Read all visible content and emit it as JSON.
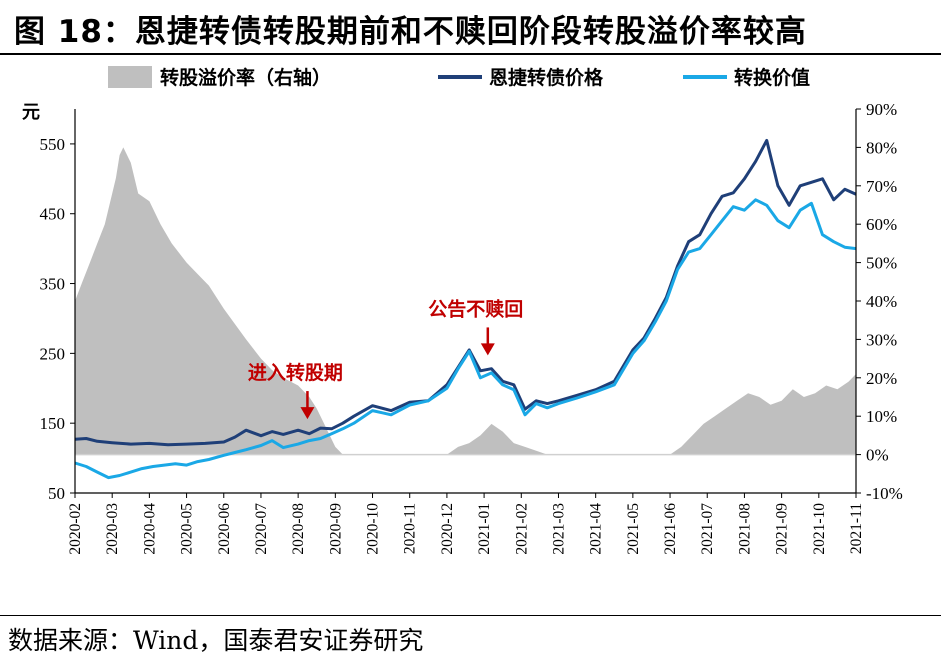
{
  "figure": {
    "title": "图 18：恩捷转债转股期前和不赎回阶段转股溢价率较高",
    "source": "数据来源：Wind，国泰君安证券研究"
  },
  "chart_data": {
    "type": "line",
    "left_axis": {
      "unit": "元",
      "ticks": [
        50,
        150,
        250,
        350,
        450,
        550
      ],
      "range": [
        50,
        600
      ]
    },
    "right_axis": {
      "ticks": [
        "-10%",
        "0%",
        "10%",
        "20%",
        "30%",
        "40%",
        "50%",
        "60%",
        "70%",
        "80%",
        "90%"
      ],
      "range": [
        -10,
        90
      ]
    },
    "x_ticks": [
      "2020-02",
      "2020-03",
      "2020-04",
      "2020-05",
      "2020-06",
      "2020-07",
      "2020-08",
      "2020-09",
      "2020-10",
      "2020-11",
      "2020-12",
      "2021-01",
      "2021-02",
      "2021-03",
      "2021-04",
      "2021-05",
      "2021-06",
      "2021-07",
      "2021-08",
      "2021-09",
      "2021-10",
      "2021-11"
    ],
    "legend": {
      "placement": "top",
      "items": [
        {
          "name": "转股溢价率（右轴）",
          "color": "#bfbfbf",
          "kind": "area"
        },
        {
          "name": "恩捷转债价格",
          "color": "#1f3f78",
          "kind": "line"
        },
        {
          "name": "转换价值",
          "color": "#1aa8e6",
          "kind": "line"
        }
      ]
    },
    "series": [
      {
        "name": "转股溢价率（右轴）",
        "axis": "right",
        "x": [
          0,
          0.2,
          0.4,
          0.6,
          0.8,
          1.0,
          1.1,
          1.2,
          1.3,
          1.5,
          1.7,
          2.0,
          2.3,
          2.6,
          3.0,
          3.3,
          3.6,
          4.0,
          4.3,
          4.6,
          5.0,
          5.3,
          5.6,
          6.0,
          6.3,
          6.5,
          6.7,
          6.9,
          7.0,
          7.1,
          7.2,
          7.5,
          8.0,
          8.5,
          9.0,
          9.5,
          10.0,
          10.3,
          10.6,
          10.9,
          11.2,
          11.5,
          11.8,
          12.1,
          12.4,
          12.7,
          13.0,
          13.5,
          14.0,
          14.5,
          15.0,
          15.5,
          16.0,
          16.3,
          16.6,
          16.9,
          17.2,
          17.5,
          17.8,
          18.1,
          18.4,
          18.7,
          19.0,
          19.3,
          19.6,
          19.9,
          20.2,
          20.5,
          20.8,
          21.0
        ],
        "values": [
          40,
          45,
          50,
          55,
          60,
          68,
          72,
          78,
          80,
          76,
          68,
          66,
          60,
          55,
          50,
          47,
          44,
          38,
          34,
          30,
          25,
          22,
          20,
          18,
          15,
          12,
          8,
          4,
          2,
          1,
          0,
          0,
          0,
          0,
          0,
          0,
          0,
          2,
          3,
          5,
          8,
          6,
          3,
          2,
          1,
          0,
          0,
          0,
          0,
          0,
          0,
          0,
          0,
          2,
          5,
          8,
          10,
          12,
          14,
          16,
          15,
          13,
          14,
          17,
          15,
          16,
          18,
          17,
          19,
          21
        ]
      },
      {
        "name": "恩捷转债价格",
        "axis": "left",
        "x": [
          0,
          0.3,
          0.6,
          1.0,
          1.5,
          2.0,
          2.5,
          3.0,
          3.5,
          4.0,
          4.3,
          4.6,
          5.0,
          5.3,
          5.6,
          6.0,
          6.3,
          6.6,
          6.9,
          7.2,
          7.5,
          8.0,
          8.5,
          9.0,
          9.5,
          10.0,
          10.3,
          10.6,
          10.9,
          11.2,
          11.5,
          11.8,
          12.1,
          12.4,
          12.7,
          13.0,
          13.5,
          14.0,
          14.5,
          15.0,
          15.3,
          15.6,
          15.9,
          16.2,
          16.5,
          16.8,
          17.1,
          17.4,
          17.7,
          18.0,
          18.3,
          18.6,
          18.9,
          19.2,
          19.5,
          19.8,
          20.1,
          20.4,
          20.7,
          21.0
        ],
        "values": [
          127,
          128,
          124,
          122,
          120,
          121,
          119,
          120,
          121,
          123,
          130,
          140,
          132,
          138,
          134,
          140,
          135,
          143,
          142,
          150,
          160,
          175,
          168,
          180,
          182,
          205,
          230,
          255,
          225,
          228,
          210,
          205,
          170,
          182,
          178,
          182,
          190,
          198,
          210,
          255,
          272,
          300,
          330,
          375,
          410,
          420,
          450,
          475,
          480,
          500,
          525,
          555,
          490,
          462,
          490,
          495,
          500,
          470,
          485,
          478
        ]
      },
      {
        "name": "转换价值",
        "axis": "left",
        "x": [
          0,
          0.3,
          0.6,
          0.9,
          1.2,
          1.5,
          1.8,
          2.1,
          2.4,
          2.7,
          3.0,
          3.3,
          3.6,
          4.0,
          4.3,
          4.6,
          5.0,
          5.3,
          5.6,
          6.0,
          6.3,
          6.6,
          6.9,
          7.2,
          7.5,
          8.0,
          8.5,
          9.0,
          9.5,
          10.0,
          10.3,
          10.6,
          10.9,
          11.2,
          11.5,
          11.8,
          12.1,
          12.4,
          12.7,
          13.0,
          13.5,
          14.0,
          14.5,
          15.0,
          15.3,
          15.6,
          15.9,
          16.2,
          16.5,
          16.8,
          17.1,
          17.4,
          17.7,
          18.0,
          18.3,
          18.6,
          18.9,
          19.2,
          19.5,
          19.8,
          20.1,
          20.4,
          20.7,
          21.0
        ],
        "values": [
          93,
          88,
          80,
          72,
          75,
          80,
          85,
          88,
          90,
          92,
          90,
          95,
          98,
          104,
          108,
          112,
          118,
          125,
          115,
          120,
          125,
          128,
          135,
          142,
          150,
          168,
          162,
          176,
          182,
          200,
          228,
          253,
          215,
          222,
          205,
          198,
          162,
          178,
          172,
          178,
          186,
          195,
          205,
          250,
          268,
          295,
          325,
          370,
          395,
          400,
          420,
          440,
          460,
          455,
          470,
          462,
          440,
          430,
          455,
          465,
          420,
          410,
          402,
          400
        ]
      }
    ],
    "annotations": [
      {
        "text": "进入转股期",
        "at_x": 6.25
      },
      {
        "text": "公告不赎回",
        "at_x": 11.1
      }
    ]
  }
}
